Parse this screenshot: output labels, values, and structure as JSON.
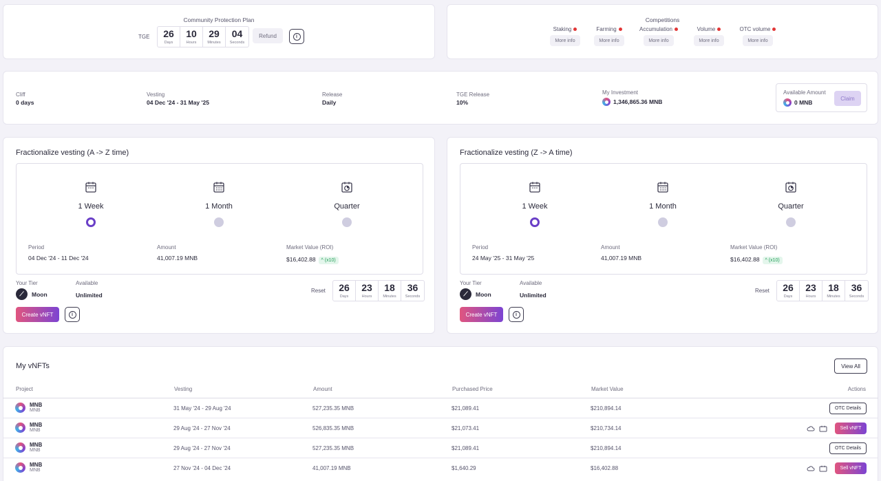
{
  "protection": {
    "title": "Community Protection Plan",
    "tge_label": "TGE",
    "countdown": [
      {
        "value": "26",
        "unit": "Days"
      },
      {
        "value": "10",
        "unit": "Hours"
      },
      {
        "value": "29",
        "unit": "Minutes"
      },
      {
        "value": "04",
        "unit": "Seconds"
      }
    ],
    "refund_label": "Refund",
    "info_glyph": "i"
  },
  "competitions": {
    "title": "Competitions",
    "items": [
      {
        "label": "Staking",
        "button": "More info"
      },
      {
        "label": "Farming",
        "button": "More info"
      },
      {
        "label": "Accumulation",
        "button": "More info"
      },
      {
        "label": "Volume",
        "button": "More info"
      },
      {
        "label": "OTC volume",
        "button": "More info"
      }
    ],
    "indicator_color": "#e23636"
  },
  "summary": {
    "cliff": {
      "label": "Cliff",
      "value": "0 days"
    },
    "vesting": {
      "label": "Vesting",
      "value": "04 Dec '24 - 31 May '25"
    },
    "release": {
      "label": "Release",
      "value": "Daily"
    },
    "tge_release": {
      "label": "TGE Release",
      "value": "10%"
    },
    "investment": {
      "label": "My Investment",
      "value": "1,346,865.36 MNB"
    },
    "available": {
      "label": "Available Amount",
      "value": "0 MNB",
      "claim": "Claim"
    }
  },
  "panels": [
    {
      "title": "Fractionalize vesting (A -> Z time)",
      "options": [
        "1 Week",
        "1 Month",
        "Quarter"
      ],
      "period_label": "Period",
      "period_value": "04 Dec '24 - 11 Dec '24",
      "amount_label": "Amount",
      "amount_value": "41,007.19 MNB",
      "market_label": "Market Value (ROI)",
      "market_value": "$16,402.88",
      "roi": "^ (x10)",
      "tier_label": "Your Tier",
      "tier_value": "Moon",
      "available_label": "Available",
      "available_value": "Unlimited",
      "reset_label": "Reset",
      "countdown": [
        {
          "value": "26",
          "unit": "Days"
        },
        {
          "value": "23",
          "unit": "Hours"
        },
        {
          "value": "18",
          "unit": "Minutes"
        },
        {
          "value": "36",
          "unit": "Seconds"
        }
      ],
      "create_label": "Create vNFT"
    },
    {
      "title": "Fractionalize vesting (Z -> A time)",
      "options": [
        "1 Week",
        "1 Month",
        "Quarter"
      ],
      "period_label": "Period",
      "period_value": "24 May '25 - 31 May '25",
      "amount_label": "Amount",
      "amount_value": "41,007.19 MNB",
      "market_label": "Market Value (ROI)",
      "market_value": "$16,402.88",
      "roi": "^ (x10)",
      "tier_label": "Your Tier",
      "tier_value": "Moon",
      "available_label": "Available",
      "available_value": "Unlimited",
      "reset_label": "Reset",
      "countdown": [
        {
          "value": "26",
          "unit": "Days"
        },
        {
          "value": "23",
          "unit": "Hours"
        },
        {
          "value": "18",
          "unit": "Minutes"
        },
        {
          "value": "36",
          "unit": "Seconds"
        }
      ],
      "create_label": "Create vNFT"
    }
  ],
  "vnfts": {
    "title": "My vNFTs",
    "view_all": "View All",
    "columns": [
      "Project",
      "Vesting",
      "Amount",
      "Purchased Price",
      "Market Value",
      "Actions"
    ],
    "rows": [
      {
        "project": "MNB",
        "sub": "MNB",
        "vesting": "31 May '24 - 29 Aug '24",
        "amount": "527,235.35 MNB",
        "price": "$21,089.41",
        "market": "$210,894.14",
        "action": "OTC Details"
      },
      {
        "project": "MNB",
        "sub": "MNB",
        "vesting": "29 Aug '24 - 27 Nov '24",
        "amount": "526,835.35 MNB",
        "price": "$21,073.41",
        "market": "$210,734.14",
        "action": "Sell vNFT"
      },
      {
        "project": "MNB",
        "sub": "MNB",
        "vesting": "29 Aug '24 - 27 Nov '24",
        "amount": "527,235.35 MNB",
        "price": "$21,089.41",
        "market": "$210,894.14",
        "action": "OTC Details"
      },
      {
        "project": "MNB",
        "sub": "MNB",
        "vesting": "27 Nov '24 - 04 Dec '24",
        "amount": "41,007.19 MNB",
        "price": "$1,640.29",
        "market": "$16,402.88",
        "action": "Sell vNFT"
      }
    ]
  }
}
